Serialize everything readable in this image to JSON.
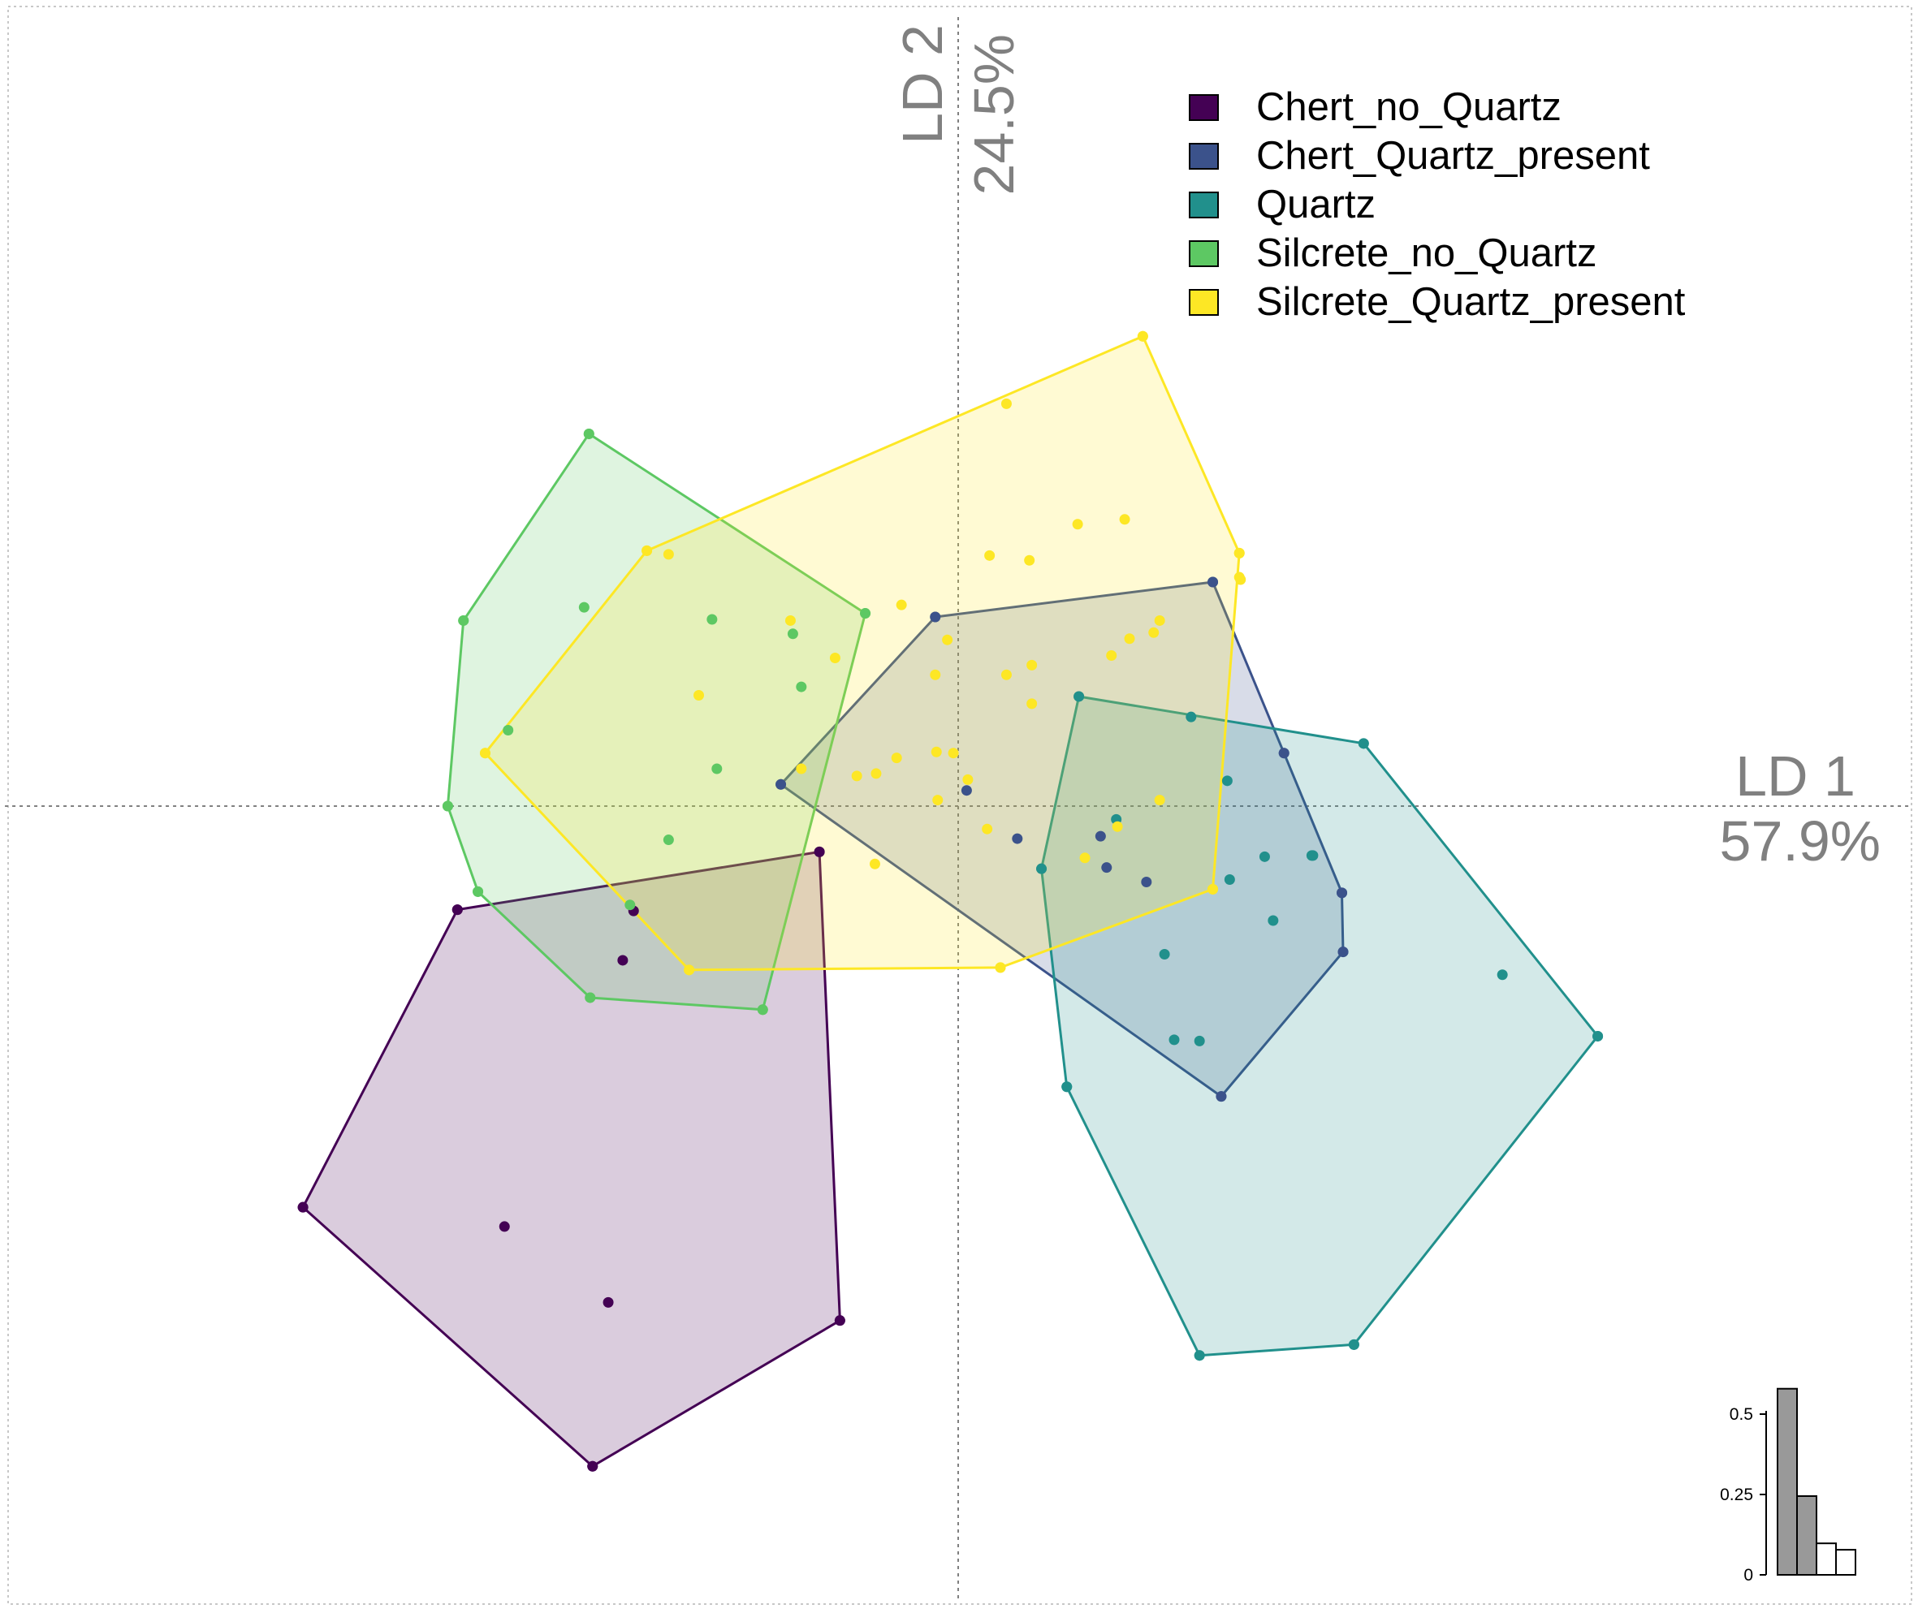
{
  "chart_data": {
    "type": "scatter",
    "title": "",
    "xlabel": "LD 1",
    "xlabel_pct": "57.9%",
    "ylabel": "LD 2",
    "ylabel_pct": "24.5%",
    "xlim": [
      -7.9,
      7.9
    ],
    "ylim": [
      -6.6,
      6.55
    ],
    "grid": false,
    "hulls": true,
    "legend_position": "top-right",
    "series": [
      {
        "name": "Chert_no_Quartz",
        "color": "#440154",
        "points": [
          [
            -4.15,
            -0.86
          ],
          [
            -2.69,
            -0.87
          ],
          [
            -2.78,
            -1.28
          ],
          [
            -1.15,
            -0.38
          ],
          [
            -3.76,
            -3.49
          ],
          [
            -2.9,
            -4.12
          ],
          [
            -5.43,
            -3.33
          ],
          [
            -3.03,
            -5.48
          ],
          [
            -0.98,
            -4.27
          ]
        ],
        "hull": [
          [
            -4.15,
            -0.86
          ],
          [
            -5.43,
            -3.33
          ],
          [
            -3.03,
            -5.48
          ],
          [
            -0.98,
            -4.27
          ],
          [
            -1.15,
            -0.38
          ]
        ]
      },
      {
        "name": "Chert_Quartz_present",
        "color": "#3B528B",
        "points": [
          [
            -1.47,
            0.18
          ],
          [
            -0.19,
            1.57
          ],
          [
            2.11,
            1.86
          ],
          [
            2.7,
            0.44
          ],
          [
            0.07,
            0.13
          ],
          [
            1.18,
            -0.25
          ],
          [
            1.23,
            -0.51
          ],
          [
            1.56,
            -0.63
          ],
          [
            0.49,
            -0.27
          ],
          [
            3.18,
            -0.72
          ],
          [
            3.19,
            -1.21
          ],
          [
            2.18,
            -2.41
          ]
        ],
        "hull": [
          [
            -1.47,
            0.18
          ],
          [
            -0.19,
            1.57
          ],
          [
            2.11,
            1.86
          ],
          [
            2.7,
            0.44
          ],
          [
            3.18,
            -0.72
          ],
          [
            3.19,
            -1.21
          ],
          [
            2.18,
            -2.41
          ]
        ]
      },
      {
        "name": "Quartz",
        "color": "#21908C",
        "points": [
          [
            1.0,
            0.91
          ],
          [
            1.93,
            0.74
          ],
          [
            2.23,
            0.21
          ],
          [
            3.36,
            0.52
          ],
          [
            1.31,
            -0.11
          ],
          [
            0.69,
            -0.52
          ],
          [
            2.25,
            -0.61
          ],
          [
            2.54,
            -0.42
          ],
          [
            2.93,
            -0.41
          ],
          [
            2.94,
            -0.41
          ],
          [
            2.61,
            -0.95
          ],
          [
            1.71,
            -1.23
          ],
          [
            4.51,
            -1.4
          ],
          [
            1.79,
            -1.94
          ],
          [
            2.0,
            -1.95
          ],
          [
            0.9,
            -2.33
          ],
          [
            5.3,
            -1.91
          ],
          [
            2.0,
            -4.56
          ],
          [
            3.28,
            -4.47
          ]
        ],
        "hull": [
          [
            1.0,
            0.91
          ],
          [
            3.36,
            0.52
          ],
          [
            5.3,
            -1.91
          ],
          [
            3.28,
            -4.47
          ],
          [
            2.0,
            -4.56
          ],
          [
            0.9,
            -2.33
          ],
          [
            0.69,
            -0.52
          ]
        ]
      },
      {
        "name": "Silcrete_no_Quartz",
        "color": "#5DC863",
        "points": [
          [
            -3.06,
            3.09
          ],
          [
            -4.1,
            1.54
          ],
          [
            -4.23,
            0.0
          ],
          [
            -3.73,
            0.63
          ],
          [
            -3.1,
            1.65
          ],
          [
            -2.04,
            1.55
          ],
          [
            -1.37,
            1.43
          ],
          [
            -1.3,
            0.99
          ],
          [
            -2.0,
            0.31
          ],
          [
            -2.4,
            -0.28
          ],
          [
            -3.05,
            -1.59
          ],
          [
            -1.62,
            -1.69
          ],
          [
            -0.77,
            1.6
          ],
          [
            -3.98,
            -0.71
          ],
          [
            -2.72,
            -0.82
          ]
        ],
        "hull": [
          [
            -3.06,
            3.09
          ],
          [
            -0.77,
            1.6
          ],
          [
            -1.62,
            -1.69
          ],
          [
            -3.05,
            -1.59
          ],
          [
            -3.98,
            -0.71
          ],
          [
            -4.23,
            0.0
          ],
          [
            -4.1,
            1.54
          ]
        ]
      },
      {
        "name": "Silcrete_Quartz_present",
        "color": "#FDE725",
        "points": [
          [
            1.53,
            3.9
          ],
          [
            0.4,
            3.34
          ],
          [
            0.99,
            2.34
          ],
          [
            2.33,
            1.9
          ],
          [
            2.34,
            1.88
          ],
          [
            1.38,
            2.38
          ],
          [
            0.26,
            2.08
          ],
          [
            0.59,
            2.04
          ],
          [
            -0.47,
            1.67
          ],
          [
            -1.39,
            1.54
          ],
          [
            -1.02,
            1.23
          ],
          [
            -0.09,
            1.38
          ],
          [
            -0.19,
            1.09
          ],
          [
            0.4,
            1.09
          ],
          [
            0.61,
            1.17
          ],
          [
            1.67,
            1.54
          ],
          [
            1.62,
            1.44
          ],
          [
            1.42,
            1.39
          ],
          [
            1.27,
            1.25
          ],
          [
            -1.3,
            0.31
          ],
          [
            -2.15,
            0.92
          ],
          [
            -2.58,
            2.12
          ],
          [
            -2.4,
            2.09
          ],
          [
            0.61,
            0.85
          ],
          [
            -0.17,
            0.05
          ],
          [
            0.08,
            0.22
          ],
          [
            -0.04,
            0.44
          ],
          [
            -0.18,
            0.45
          ],
          [
            -0.51,
            0.4
          ],
          [
            -0.68,
            0.27
          ],
          [
            -0.84,
            0.25
          ],
          [
            1.67,
            0.05
          ],
          [
            1.32,
            -0.17
          ],
          [
            1.05,
            -0.43
          ],
          [
            0.24,
            -0.19
          ],
          [
            -0.69,
            -0.48
          ],
          [
            2.11,
            -0.69
          ],
          [
            -2.23,
            -1.36
          ],
          [
            0.35,
            -1.34
          ],
          [
            -3.92,
            0.44
          ],
          [
            2.33,
            2.1
          ]
        ],
        "hull": [
          [
            1.53,
            3.9
          ],
          [
            2.33,
            2.1
          ],
          [
            2.11,
            -0.69
          ],
          [
            0.35,
            -1.34
          ],
          [
            -2.23,
            -1.36
          ],
          [
            -3.92,
            0.44
          ],
          [
            -2.58,
            2.12
          ]
        ]
      }
    ],
    "eigenvalues": {
      "ticks": [
        "0",
        "0.25",
        "0.5"
      ],
      "tick_values": [
        0,
        0.25,
        0.5
      ],
      "values": [
        0.579,
        0.245,
        0.098,
        0.078
      ],
      "highlighted": [
        true,
        true,
        false,
        false
      ]
    }
  }
}
